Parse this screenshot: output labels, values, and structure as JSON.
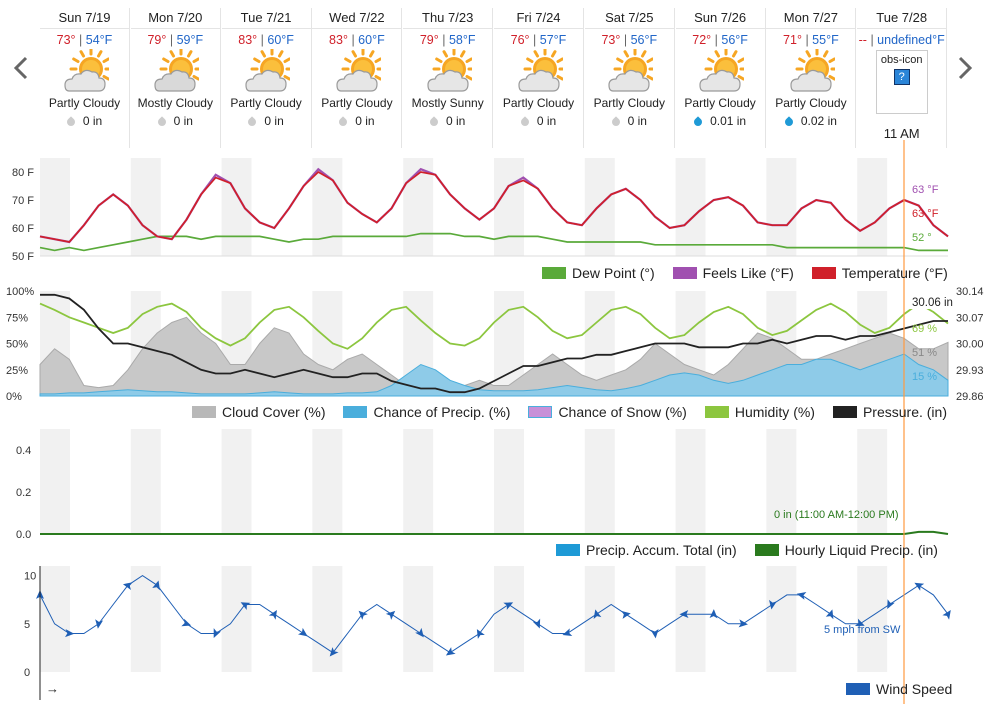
{
  "days": [
    {
      "name": "Sun 7/19",
      "hi": "73°",
      "lo": "54°F",
      "cond": "Partly Cloudy",
      "icon": "partly-cloudy-icon",
      "precip": "0 in",
      "wet": false
    },
    {
      "name": "Mon 7/20",
      "hi": "79°",
      "lo": "59°F",
      "cond": "Mostly Cloudy",
      "icon": "mostly-cloudy-icon",
      "precip": "0 in",
      "wet": false
    },
    {
      "name": "Tue 7/21",
      "hi": "83°",
      "lo": "60°F",
      "cond": "Partly Cloudy",
      "icon": "partly-cloudy-icon",
      "precip": "0 in",
      "wet": false
    },
    {
      "name": "Wed 7/22",
      "hi": "83°",
      "lo": "60°F",
      "cond": "Partly Cloudy",
      "icon": "partly-cloudy-icon",
      "precip": "0 in",
      "wet": false
    },
    {
      "name": "Thu 7/23",
      "hi": "79°",
      "lo": "58°F",
      "cond": "Mostly Sunny",
      "icon": "mostly-sunny-icon",
      "precip": "0 in",
      "wet": false
    },
    {
      "name": "Fri 7/24",
      "hi": "76°",
      "lo": "57°F",
      "cond": "Partly Cloudy",
      "icon": "partly-cloudy-icon",
      "precip": "0 in",
      "wet": false
    },
    {
      "name": "Sat 7/25",
      "hi": "73°",
      "lo": "56°F",
      "cond": "Partly Cloudy",
      "icon": "partly-cloudy-icon",
      "precip": "0 in",
      "wet": false
    },
    {
      "name": "Sun 7/26",
      "hi": "72°",
      "lo": "56°F",
      "cond": "Partly Cloudy",
      "icon": "partly-cloudy-icon",
      "precip": "0.01 in",
      "wet": true
    },
    {
      "name": "Mon 7/27",
      "hi": "71°",
      "lo": "55°F",
      "cond": "Partly Cloudy",
      "icon": "partly-cloudy-icon",
      "precip": "0.02 in",
      "wet": true
    },
    {
      "name": "Tue 7/28",
      "hi": "--",
      "lo": "undefined°F",
      "obs": "obs-icon",
      "obs_q": "?",
      "time": "11 AM"
    }
  ],
  "colors": {
    "temp": "#d0202a",
    "feels": "#a050b0",
    "dew": "#5aaa3a",
    "humidity": "#8cc63f",
    "pressure": "#222222",
    "cloud": "#b8b8b8",
    "precip_chance": "#4aaedc",
    "snow": "#c890d8",
    "accum": "#1e9ad6",
    "liquid": "#2a7a1e",
    "wind": "#1f5fb5",
    "now": "#ff9a40"
  },
  "chart_data": [
    {
      "type": "line",
      "y_ticks": [
        "80 F",
        "70 F",
        "60 F",
        "50 F"
      ],
      "ylim": [
        50,
        85
      ],
      "x_range": [
        "Sun 7/19",
        "Tue 7/28"
      ],
      "series": [
        {
          "name": "Dew Point (°)",
          "end_label": "52 °",
          "y": [
            53,
            52,
            53,
            52,
            53,
            54,
            55,
            56,
            57,
            57,
            57,
            56,
            57,
            57,
            57,
            57,
            56,
            55,
            56,
            56,
            57,
            57,
            57,
            57,
            57,
            57,
            58,
            58,
            58,
            57,
            57,
            56,
            57,
            57,
            57,
            56,
            55,
            55,
            55,
            55,
            55,
            55,
            54,
            54,
            54,
            54,
            54,
            54,
            54,
            54,
            54,
            53,
            53,
            53,
            53,
            53,
            53,
            53,
            53,
            53,
            52,
            52,
            52
          ]
        },
        {
          "name": "Feels Like (°F)",
          "end_label": "63 °F",
          "y": [
            57,
            56,
            55,
            61,
            68,
            72,
            68,
            61,
            57,
            56,
            63,
            72,
            79,
            76,
            67,
            62,
            60,
            67,
            75,
            81,
            77,
            69,
            65,
            62,
            67,
            76,
            81,
            79,
            72,
            67,
            63,
            67,
            75,
            78,
            74,
            67,
            62,
            61,
            67,
            72,
            74,
            70,
            64,
            60,
            61,
            66,
            70,
            71,
            68,
            62,
            61,
            61,
            67,
            70,
            69,
            63,
            59,
            62,
            67,
            70,
            68,
            61,
            57
          ]
        },
        {
          "name": "Temperature (°F)",
          "end_label": "63 °F",
          "y": [
            57,
            56,
            55,
            61,
            68,
            72,
            68,
            61,
            57,
            56,
            63,
            72,
            78,
            76,
            67,
            62,
            60,
            67,
            75,
            80,
            77,
            69,
            65,
            62,
            67,
            76,
            80,
            79,
            72,
            67,
            63,
            67,
            75,
            77,
            74,
            67,
            62,
            61,
            67,
            72,
            74,
            70,
            64,
            60,
            61,
            66,
            70,
            71,
            68,
            62,
            61,
            61,
            67,
            70,
            69,
            63,
            59,
            62,
            67,
            70,
            68,
            61,
            57
          ]
        }
      ]
    },
    {
      "type": "area",
      "y_ticks": [
        "100%",
        "75%",
        "50%",
        "25%",
        "0%"
      ],
      "y2_ticks": [
        "30.14",
        "30.07",
        "30.00",
        "29.93",
        "29.86"
      ],
      "ylim": [
        0,
        100
      ],
      "y2lim": [
        29.86,
        30.14
      ],
      "x_range": [
        "Sun 7/19",
        "Tue 7/28"
      ],
      "series": [
        {
          "name": "Cloud Cover (%)",
          "end_label": "51 %",
          "y": [
            30,
            45,
            35,
            10,
            8,
            10,
            25,
            45,
            60,
            70,
            75,
            60,
            50,
            30,
            30,
            50,
            65,
            60,
            40,
            30,
            25,
            35,
            40,
            30,
            20,
            10,
            10,
            5,
            5,
            10,
            15,
            10,
            10,
            20,
            30,
            40,
            30,
            20,
            15,
            20,
            25,
            35,
            50,
            40,
            30,
            25,
            20,
            30,
            45,
            60,
            55,
            45,
            35,
            35,
            40,
            45,
            50,
            55,
            60,
            55,
            45,
            45,
            51
          ]
        },
        {
          "name": "Chance of Precip. (%)",
          "end_label": "15 %",
          "y": [
            2,
            2,
            3,
            3,
            4,
            5,
            6,
            5,
            4,
            4,
            3,
            2,
            2,
            2,
            2,
            3,
            4,
            3,
            2,
            2,
            2,
            3,
            3,
            4,
            10,
            20,
            30,
            25,
            15,
            10,
            6,
            5,
            5,
            5,
            6,
            8,
            10,
            8,
            6,
            5,
            7,
            10,
            15,
            20,
            22,
            20,
            15,
            12,
            15,
            20,
            25,
            30,
            30,
            35,
            35,
            30,
            25,
            30,
            35,
            40,
            30,
            25,
            15
          ]
        },
        {
          "name": "Chance of Snow (%)",
          "y": [
            0,
            0,
            0,
            0,
            0,
            0,
            0,
            0,
            0,
            0,
            0,
            0,
            0,
            0,
            0,
            0,
            0,
            0,
            0,
            0,
            0,
            0,
            0,
            0,
            0,
            0,
            0,
            0,
            0,
            0,
            0,
            0,
            0,
            0,
            0,
            0,
            0,
            0,
            0,
            0,
            0,
            0,
            0,
            0,
            0,
            0,
            0,
            0,
            0,
            0,
            0,
            0,
            0,
            0,
            0,
            0,
            0,
            0,
            0,
            0,
            0,
            0,
            0
          ]
        },
        {
          "name": "Humidity (%)",
          "end_label": "69 %",
          "y": [
            88,
            82,
            75,
            70,
            65,
            60,
            65,
            78,
            85,
            88,
            80,
            65,
            55,
            48,
            55,
            70,
            82,
            85,
            75,
            62,
            50,
            45,
            55,
            70,
            82,
            85,
            72,
            60,
            50,
            48,
            55,
            70,
            82,
            85,
            75,
            62,
            55,
            58,
            70,
            82,
            85,
            78,
            65,
            55,
            58,
            70,
            80,
            85,
            78,
            65,
            58,
            62,
            72,
            82,
            88,
            80,
            68,
            60,
            65,
            78,
            88,
            80,
            69
          ]
        },
        {
          "name": "Pressure. (in)",
          "end_label": "30.06 in",
          "axis": "right",
          "y": [
            30.13,
            30.13,
            30.12,
            30.09,
            30.04,
            30.0,
            30.0,
            29.99,
            29.98,
            29.97,
            29.95,
            29.93,
            29.92,
            29.92,
            29.93,
            29.92,
            29.91,
            29.92,
            29.93,
            29.92,
            29.91,
            29.91,
            29.92,
            29.92,
            29.9,
            29.89,
            29.88,
            29.88,
            29.87,
            29.87,
            29.88,
            29.9,
            29.92,
            29.94,
            29.94,
            29.95,
            29.96,
            29.96,
            29.97,
            29.97,
            29.98,
            29.99,
            30.0,
            30.0,
            30.0,
            29.99,
            29.99,
            29.99,
            30.0,
            30.0,
            30.01,
            30.0,
            30.01,
            30.02,
            30.02,
            30.01,
            30.02,
            30.02,
            30.03,
            30.04,
            30.05,
            30.06,
            30.06
          ]
        }
      ]
    },
    {
      "type": "line",
      "y_ticks": [
        "0.4",
        "0.2",
        "0.0"
      ],
      "ylim": [
        0,
        0.5
      ],
      "x_range": [
        "Sun 7/19",
        "Tue 7/28"
      ],
      "annotation": "0 in (11:00 AM-12:00 PM)",
      "series": [
        {
          "name": "Precip. Accum. Total (in)",
          "y": [
            0,
            0,
            0,
            0,
            0,
            0,
            0,
            0,
            0,
            0,
            0,
            0,
            0,
            0,
            0,
            0,
            0,
            0,
            0,
            0,
            0,
            0,
            0,
            0,
            0,
            0,
            0,
            0,
            0,
            0,
            0,
            0,
            0,
            0,
            0,
            0,
            0,
            0,
            0,
            0,
            0,
            0,
            0,
            0,
            0,
            0,
            0,
            0,
            0,
            0,
            0,
            0,
            0,
            0,
            0,
            0,
            0,
            0,
            0,
            0,
            0.01,
            0.01,
            0
          ]
        },
        {
          "name": "Hourly Liquid Precip. (in)",
          "y": [
            0,
            0,
            0,
            0,
            0,
            0,
            0,
            0,
            0,
            0,
            0,
            0,
            0,
            0,
            0,
            0,
            0,
            0,
            0,
            0,
            0,
            0,
            0,
            0,
            0,
            0,
            0,
            0,
            0,
            0,
            0,
            0,
            0,
            0,
            0,
            0,
            0,
            0,
            0,
            0,
            0,
            0,
            0,
            0,
            0,
            0,
            0,
            0,
            0,
            0,
            0,
            0,
            0,
            0,
            0,
            0,
            0,
            0,
            0,
            0,
            0.01,
            0.01,
            0
          ]
        }
      ]
    },
    {
      "type": "line",
      "y_ticks": [
        "10",
        "5",
        "0"
      ],
      "ylim": [
        0,
        11
      ],
      "x_range": [
        "Sun 7/19",
        "Tue 7/28"
      ],
      "annotation": "5 mph from SW",
      "axis_arrow": "→",
      "series": [
        {
          "name": "Wind Speed",
          "y": [
            8,
            5,
            4,
            4,
            5,
            7,
            9,
            10,
            9,
            7,
            5,
            4,
            4,
            5,
            7,
            7,
            6,
            5,
            4,
            3,
            2,
            4,
            6,
            7,
            6,
            5,
            4,
            3,
            2,
            3,
            4,
            6,
            7,
            6,
            5,
            4,
            4,
            5,
            6,
            7,
            6,
            5,
            4,
            5,
            6,
            6,
            6,
            5,
            5,
            6,
            7,
            8,
            8,
            7,
            6,
            5,
            5,
            6,
            7,
            8,
            9,
            8,
            6
          ]
        }
      ]
    }
  ]
}
